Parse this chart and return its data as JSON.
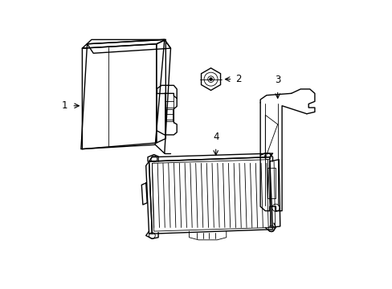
{
  "background_color": "#ffffff",
  "line_color": "#000000",
  "lw": 1.0,
  "tlw": 0.6,
  "label_fontsize": 8.5
}
